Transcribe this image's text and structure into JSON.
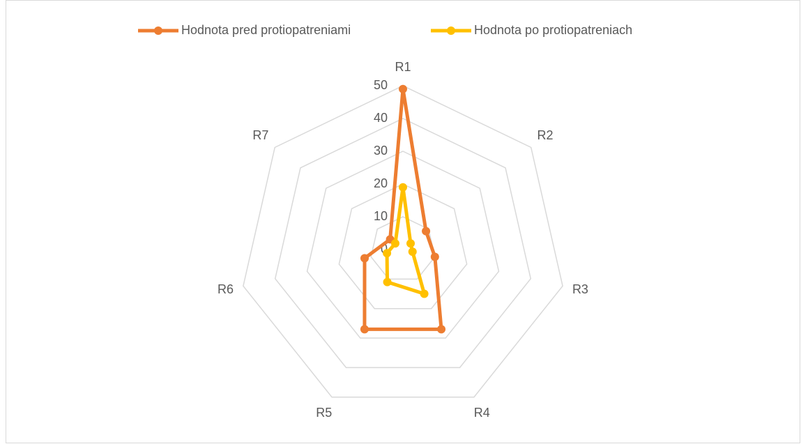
{
  "chart_data": {
    "type": "radar",
    "categories": [
      "R1",
      "R2",
      "R3",
      "R4",
      "R5",
      "R6",
      "R7"
    ],
    "series": [
      {
        "name": "Hodnota pred protiopatreniami",
        "color": "#ed7d31",
        "values": [
          49,
          9,
          10,
          27,
          27,
          12,
          5
        ]
      },
      {
        "name": "Hodnota po protiopatreniach",
        "color": "#ffc000",
        "values": [
          19,
          3,
          3,
          15,
          11,
          5,
          3
        ]
      }
    ],
    "ylim": [
      0,
      50
    ],
    "yticks": [
      0,
      10,
      20,
      30,
      40,
      50
    ],
    "grid": true,
    "legend": "top"
  }
}
